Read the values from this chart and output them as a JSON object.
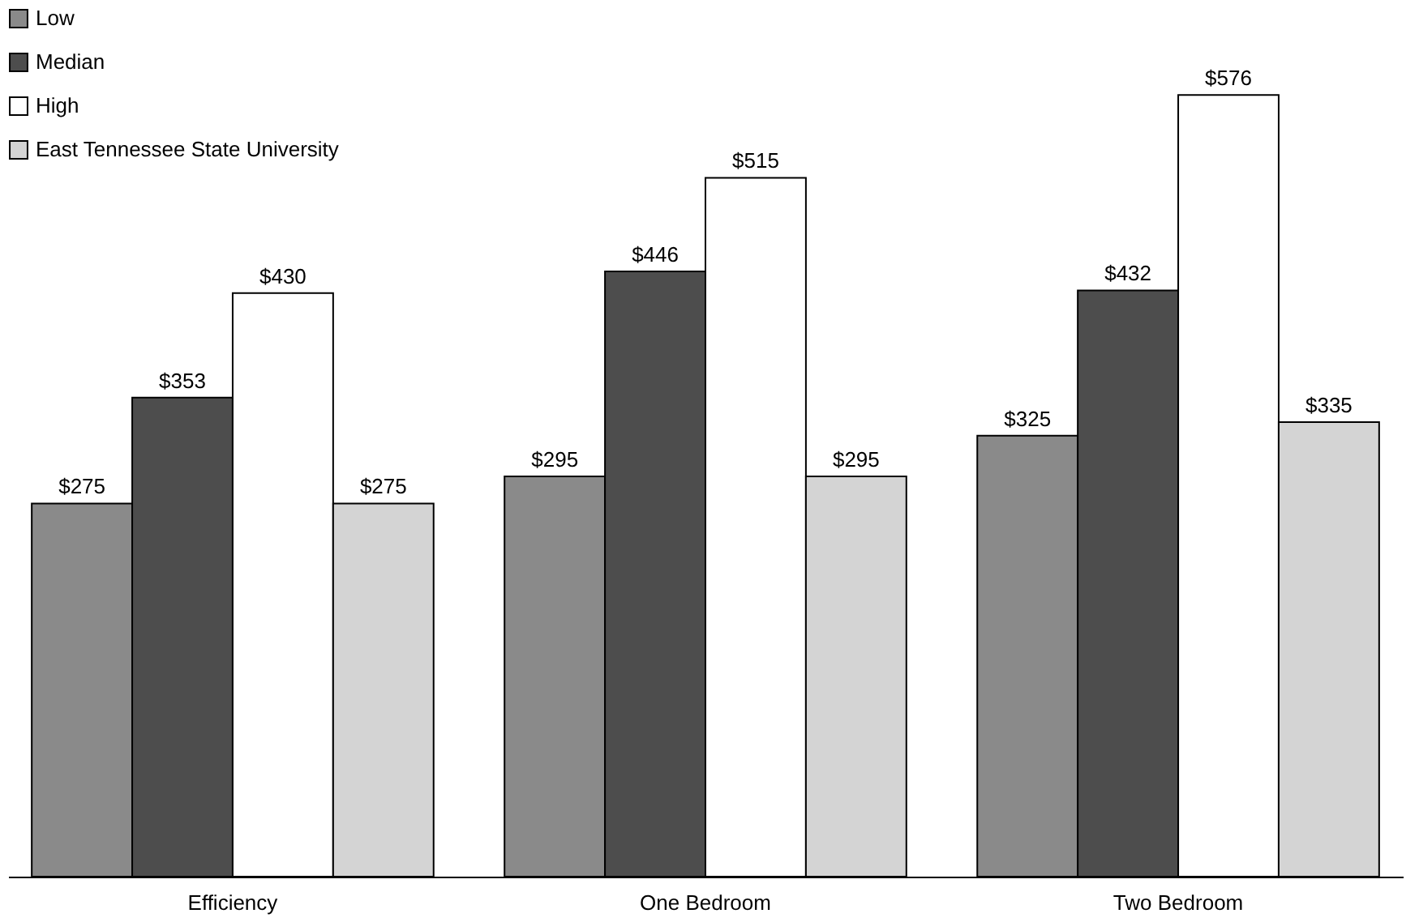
{
  "chart_data": {
    "type": "bar",
    "categories": [
      "Efficiency",
      "One Bedroom",
      "Two Bedroom"
    ],
    "series": [
      {
        "name": "Low",
        "color": "#8a8a8a",
        "values": [
          275,
          295,
          325
        ],
        "value_labels": [
          "$275",
          "$295",
          "$325"
        ]
      },
      {
        "name": "Median",
        "color": "#4d4d4d",
        "values": [
          353,
          446,
          432
        ],
        "value_labels": [
          "$353",
          "$446",
          "$432"
        ]
      },
      {
        "name": "High",
        "color": "#ffffff",
        "values": [
          430,
          515,
          576
        ],
        "value_labels": [
          "$430",
          "$515",
          "$576"
        ]
      },
      {
        "name": "East Tennessee State University",
        "color": "#d4d4d4",
        "values": [
          275,
          295,
          335
        ],
        "value_labels": [
          "$275",
          "$295",
          "$335"
        ]
      }
    ],
    "ylim": [
      0,
      640
    ],
    "tick_labels": "x",
    "grid": false,
    "legend": "top left"
  }
}
